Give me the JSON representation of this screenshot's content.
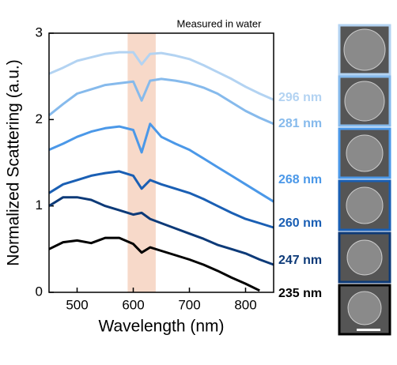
{
  "chart_data": {
    "type": "line",
    "title": "Measured in water",
    "x_label": "Wavelength (nm)",
    "y_label": "Normalized Scattering (a.u.)",
    "x": [
      450,
      475,
      500,
      525,
      550,
      575,
      600,
      615,
      630,
      650,
      675,
      700,
      725,
      750,
      775,
      800,
      825,
      850
    ],
    "series": [
      {
        "name": "296 nm",
        "color": "#b3d3f2",
        "values": [
          2.53,
          2.6,
          2.68,
          2.72,
          2.76,
          2.78,
          2.78,
          2.64,
          2.76,
          2.77,
          2.74,
          2.7,
          2.63,
          2.55,
          2.47,
          2.38,
          2.3,
          2.23
        ]
      },
      {
        "name": "281 nm",
        "color": "#86baec",
        "values": [
          2.05,
          2.18,
          2.3,
          2.35,
          2.4,
          2.42,
          2.44,
          2.22,
          2.45,
          2.47,
          2.45,
          2.42,
          2.37,
          2.3,
          2.2,
          2.1,
          2.02,
          1.95
        ]
      },
      {
        "name": "268 nm",
        "color": "#4b98e8",
        "values": [
          1.65,
          1.72,
          1.8,
          1.86,
          1.9,
          1.92,
          1.88,
          1.62,
          1.95,
          1.8,
          1.72,
          1.65,
          1.55,
          1.45,
          1.35,
          1.25,
          1.15,
          1.05
        ]
      },
      {
        "name": "260 nm",
        "color": "#1a5fb4",
        "values": [
          1.15,
          1.25,
          1.3,
          1.35,
          1.38,
          1.4,
          1.35,
          1.2,
          1.3,
          1.25,
          1.2,
          1.15,
          1.08,
          1.0,
          0.92,
          0.85,
          0.8,
          0.75
        ]
      },
      {
        "name": "247 nm",
        "color": "#0d3a78",
        "values": [
          1.0,
          1.1,
          1.1,
          1.07,
          1.0,
          0.95,
          0.9,
          0.92,
          0.85,
          0.8,
          0.74,
          0.68,
          0.62,
          0.55,
          0.5,
          0.45,
          0.38,
          0.32
        ]
      },
      {
        "name": "235 nm",
        "color": "#000000",
        "values": [
          0.5,
          0.58,
          0.6,
          0.57,
          0.63,
          0.63,
          0.56,
          0.46,
          0.52,
          0.48,
          0.43,
          0.38,
          0.32,
          0.25,
          0.17,
          0.1,
          0.02,
          null
        ]
      }
    ],
    "shaded_range": [
      590,
      640
    ],
    "shaded_color": "#f7d9c9",
    "xlim": [
      450,
      850
    ],
    "xticks": [
      500,
      600,
      700,
      800
    ],
    "ylim": [
      0,
      3
    ],
    "yticks": [
      0,
      1,
      2,
      3
    ]
  }
}
